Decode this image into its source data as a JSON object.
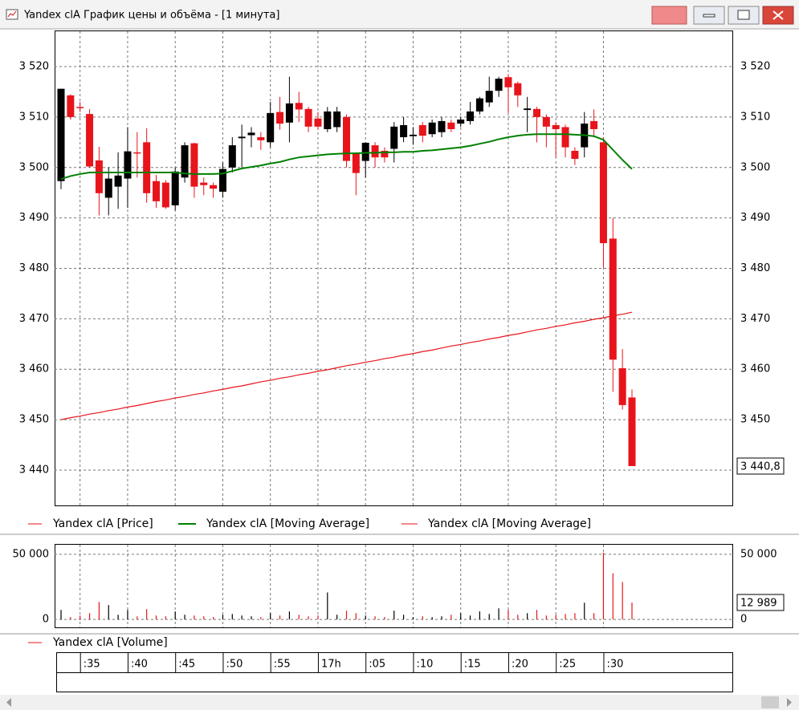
{
  "window": {
    "title": "Yandex clA График цены и объёма - [1 минута]"
  },
  "chart_data": [
    {
      "type": "candlestick",
      "categories": [
        null,
        null,
        ":35",
        null,
        null,
        null,
        null,
        ":40",
        null,
        null,
        null,
        null,
        ":45",
        null,
        null,
        null,
        null,
        ":50",
        null,
        null,
        null,
        null,
        ":55",
        null,
        null,
        null,
        null,
        "17h",
        null,
        null,
        null,
        null,
        ":05",
        null,
        null,
        null,
        null,
        ":10",
        null,
        null,
        null,
        null,
        ":15",
        null,
        null,
        null,
        null,
        ":20",
        null,
        null,
        null,
        null,
        ":25",
        null,
        null,
        null,
        null,
        ":30",
        null,
        null,
        null
      ],
      "series": [
        {
          "name": "Yandex clA [Price]",
          "color": "#e8141b",
          "up_color": "#000000",
          "down_color": "#e8141b",
          "open": [
            3497.3,
            3514.3,
            3512,
            3510.6,
            3501.4,
            3494,
            3496.2,
            3497.8,
            3503,
            3505,
            3497.3,
            3497,
            3492.5,
            3498,
            3504.8,
            3497,
            3496.5,
            3495.2,
            3500,
            3505.8,
            3506.4,
            3506,
            3505,
            3511,
            3508.9,
            3512.8,
            3511.6,
            3509.7,
            3507.6,
            3508,
            3510,
            3502.9,
            3501.3,
            3504.4,
            3503.3,
            3503.7,
            3506,
            3506.2,
            3508.4,
            3506.6,
            3507,
            3508.9,
            3508.7,
            3509.2,
            3511.1,
            3512.9,
            3515.2,
            3517.9,
            3516.7,
            3511.4,
            3511.6,
            3510,
            3508.4,
            3508,
            3503.3,
            3504,
            3509.2,
            3505,
            3485.9,
            3460.2,
            3454.4
          ],
          "high": [
            3515.6,
            3514.5,
            3513,
            3511.6,
            3504.1,
            3500,
            3503,
            3508,
            3507,
            3507.8,
            3498.5,
            3497.5,
            3500,
            3505,
            3504.9,
            3498,
            3497,
            3501,
            3506,
            3508.5,
            3508,
            3507,
            3513,
            3514,
            3518,
            3515,
            3512,
            3511,
            3512,
            3512,
            3510.5,
            3503,
            3505,
            3505,
            3504,
            3509,
            3510,
            3508,
            3509,
            3509.5,
            3510,
            3509.5,
            3510,
            3513,
            3514,
            3518,
            3518,
            3518.5,
            3517,
            3514,
            3512,
            3510.5,
            3509,
            3508.5,
            3504,
            3511,
            3511.5,
            3506,
            3490,
            3464,
            3456
          ],
          "low": [
            3495.7,
            3509.5,
            3511,
            3500,
            3490.5,
            3490.5,
            3491.8,
            3492,
            3498,
            3493,
            3492,
            3491.8,
            3491.5,
            3497,
            3494,
            3494.5,
            3494,
            3494,
            3499,
            3500,
            3504,
            3503.5,
            3504,
            3507.5,
            3505,
            3509,
            3507,
            3507.5,
            3507,
            3507,
            3500,
            3494.5,
            3498,
            3500,
            3501,
            3501,
            3505,
            3504.5,
            3505,
            3506,
            3506,
            3507,
            3508,
            3508.5,
            3510.5,
            3512,
            3514,
            3510.8,
            3512,
            3507,
            3505,
            3504,
            3502,
            3502,
            3500.5,
            3502,
            3506,
            3480.2,
            3455.5,
            3452,
            3440.8
          ],
          "close": [
            3515.6,
            3510,
            3511.8,
            3500.2,
            3494.9,
            3497.8,
            3498.4,
            3503.2,
            3502.8,
            3494.9,
            3493.3,
            3492.1,
            3499.2,
            3504.4,
            3496.2,
            3496.5,
            3495.8,
            3499.7,
            3504.4,
            3506.1,
            3506.9,
            3505.4,
            3510.8,
            3508.7,
            3512.7,
            3511.5,
            3508.1,
            3508.1,
            3511.1,
            3511.1,
            3501.3,
            3498.9,
            3504.9,
            3502,
            3502,
            3508.1,
            3508.4,
            3506.5,
            3506.3,
            3508.9,
            3509.2,
            3507.6,
            3509.5,
            3511.1,
            3513.7,
            3515.2,
            3517.6,
            3515.9,
            3514.3,
            3511.7,
            3510,
            3508.1,
            3507.6,
            3504,
            3501.7,
            3508.7,
            3507.6,
            3485,
            3461.9,
            3452.9,
            3440.8
          ]
        },
        {
          "name": "Yandex clA [Moving Average]",
          "type": "line",
          "color": "#008000",
          "values": [
            3497.7,
            3498.3,
            3498.7,
            3499,
            3499,
            3499,
            3499,
            3499,
            3499,
            3499,
            3499,
            3499,
            3499,
            3498.8,
            3498.7,
            3498.7,
            3498.7,
            3498.8,
            3499.3,
            3499.8,
            3500.1,
            3500.4,
            3500.8,
            3501.1,
            3501.6,
            3502,
            3502.2,
            3502.4,
            3502.6,
            3502.7,
            3502.8,
            3502.8,
            3502.9,
            3502.9,
            3503,
            3503,
            3503.1,
            3503.1,
            3503.3,
            3503.4,
            3503.6,
            3503.8,
            3504,
            3504.3,
            3504.7,
            3505.1,
            3505.6,
            3506,
            3506.3,
            3506.5,
            3506.6,
            3506.6,
            3506.6,
            3506.6,
            3506.5,
            3506.4,
            3506.2,
            3505.5,
            3503.5,
            3501.5,
            3499.7
          ]
        },
        {
          "name": "Yandex clA [Moving Average]",
          "type": "line",
          "color": "#e8141b",
          "values": [
            3450.0,
            3450.4,
            3450.7,
            3451.1,
            3451.4,
            3451.8,
            3452.1,
            3452.5,
            3452.8,
            3453.2,
            3453.6,
            3453.9,
            3454.3,
            3454.6,
            3455.0,
            3455.3,
            3455.7,
            3456.0,
            3456.4,
            3456.7,
            3457.1,
            3457.5,
            3457.8,
            3458.2,
            3458.5,
            3458.9,
            3459.2,
            3459.6,
            3459.9,
            3460.3,
            3460.7,
            3461.0,
            3461.4,
            3461.7,
            3462.1,
            3462.4,
            3462.8,
            3463.1,
            3463.5,
            3463.8,
            3464.2,
            3464.6,
            3464.9,
            3465.3,
            3465.6,
            3466.0,
            3466.3,
            3466.7,
            3467.0,
            3467.4,
            3467.8,
            3468.1,
            3468.5,
            3468.8,
            3469.2,
            3469.5,
            3469.9,
            3470.2,
            3470.6,
            3470.9,
            3471.3
          ]
        }
      ],
      "ylim": [
        3433,
        3527
      ],
      "yticks": [
        {
          "value": 3440,
          "label": "3 440"
        },
        {
          "value": 3450,
          "label": "3 450"
        },
        {
          "value": 3460,
          "label": "3 460"
        },
        {
          "value": 3470,
          "label": "3 470"
        },
        {
          "value": 3480,
          "label": "3 480"
        },
        {
          "value": 3490,
          "label": "3 490"
        },
        {
          "value": 3500,
          "label": "3 500"
        },
        {
          "value": 3510,
          "label": "3 510"
        },
        {
          "value": 3520,
          "label": "3 520"
        }
      ],
      "grid": true,
      "last_value_label": {
        "value": 3440.8,
        "label": "3 440,8"
      }
    },
    {
      "type": "bar",
      "series": [
        {
          "name": "Yandex clA [Volume]",
          "color": "#e8141b",
          "values": [
            7300,
            1800,
            3000,
            4800,
            13400,
            11000,
            3600,
            7300,
            2400,
            7900,
            3000,
            2400,
            6100,
            3600,
            3000,
            2400,
            1800,
            3600,
            4200,
            3000,
            2400,
            1800,
            4800,
            3000,
            6100,
            3600,
            2400,
            3000,
            20700,
            3600,
            6700,
            4800,
            3000,
            2400,
            1800,
            6700,
            3600,
            1800,
            2400,
            1800,
            2400,
            3600,
            4800,
            3000,
            6100,
            4200,
            8500,
            7300,
            3600,
            4800,
            7300,
            3000,
            3600,
            4200,
            4800,
            12800,
            4800,
            51200,
            35400,
            28700,
            12989
          ]
        }
      ],
      "ylim": [
        -6100,
        57300
      ],
      "yticks": [
        0,
        {
          "value": 50000,
          "label": "50 000"
        }
      ],
      "grid": true,
      "last_value_label": {
        "value": 12989,
        "label": "12 989"
      }
    }
  ]
}
